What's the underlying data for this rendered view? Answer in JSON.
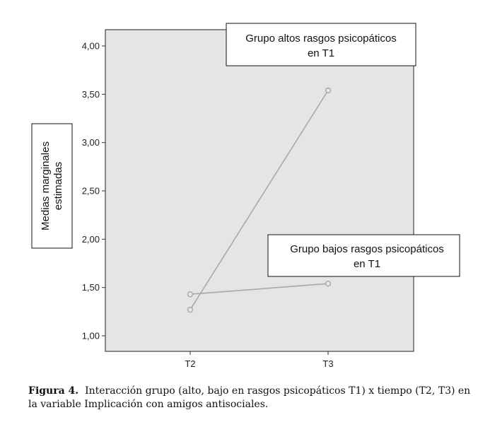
{
  "chart_data": {
    "type": "line",
    "categories": [
      "T2",
      "T3"
    ],
    "ylabel_line1": "Medias marginales",
    "ylabel_line2": "estimadas",
    "ylim": [
      1.0,
      4.0
    ],
    "yticks": [
      "1,00",
      "1,50",
      "2,00",
      "2,50",
      "3,00",
      "3,50",
      "4,00"
    ],
    "ytick_values": [
      1.0,
      1.5,
      2.0,
      2.5,
      3.0,
      3.5,
      4.0
    ],
    "series": [
      {
        "values": [
          1.27,
          3.54
        ],
        "label_line1": "Grupo altos rasgos psicopáticos",
        "label_line2": "en T1"
      },
      {
        "values": [
          1.43,
          1.54
        ],
        "label_line1": "Grupo bajos rasgos psicopáticos",
        "label_line2": "en T1"
      }
    ],
    "colors": {
      "plot_bg": "#e5e5e5",
      "line": "#a8a8a8",
      "frame": "#444444"
    }
  },
  "caption": {
    "label": "Figura 4.",
    "text": "Interacción grupo (alto, bajo en rasgos psicopáticos T1) x tiempo (T2, T3) en la variable Implicación con amigos antisociales."
  }
}
